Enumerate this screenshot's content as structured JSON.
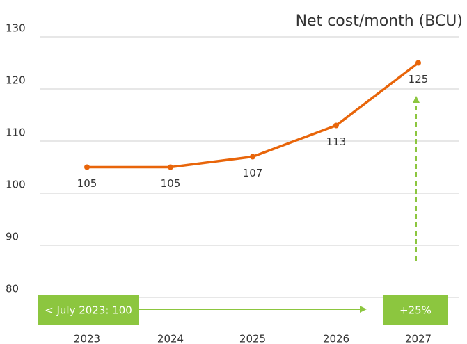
{
  "chart_data": {
    "type": "line",
    "title": "Net cost/month (BCU)",
    "categories": [
      "2023",
      "2024",
      "2025",
      "2026",
      "2027"
    ],
    "series": [
      {
        "name": "Net cost/month",
        "color": "#e8650a",
        "values": [
          105,
          105,
          107,
          113,
          125
        ]
      }
    ],
    "ylim": [
      80,
      130
    ],
    "yticks": [
      80,
      90,
      100,
      110,
      120,
      130
    ],
    "grid": true,
    "annotations": [
      "< July 2023: 100",
      "+25%"
    ]
  }
}
